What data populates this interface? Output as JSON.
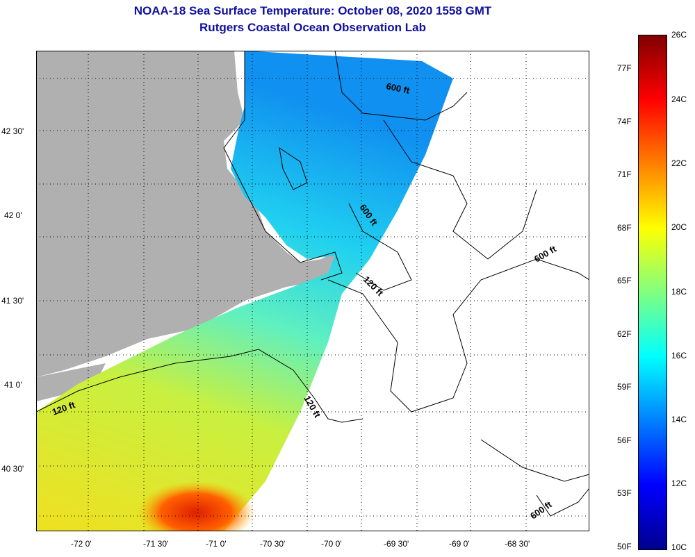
{
  "title": "NOAA-18 Sea Surface Temperature:  October 08, 2020 1558 GMT",
  "subtitle": "Rutgers Coastal Ocean Observation Lab",
  "map": {
    "lon_ticks": [
      "-72 0'",
      "-71 30'",
      "-71 0'",
      "-70 30'",
      "-70 0'",
      "-69 30'",
      "-69 0'",
      "-68 30'"
    ],
    "lat_ticks": [
      "42 30'",
      "42 0'",
      "41 30'",
      "41 0'",
      "40 30'"
    ],
    "contour_labels": [
      {
        "text": "600 ft"
      },
      {
        "text": "600 ft"
      },
      {
        "text": "600 ft"
      },
      {
        "text": "600 ft"
      },
      {
        "text": "120 ft"
      },
      {
        "text": "120 ft"
      },
      {
        "text": "120 ft"
      }
    ],
    "colors": {
      "land": "#b0b0b0",
      "no_data": "#ffffff",
      "coastline": "#000000"
    }
  },
  "colorbar": {
    "celsius_labels": [
      "26C",
      "24C",
      "22C",
      "20C",
      "18C",
      "16C",
      "14C",
      "12C",
      "10C"
    ],
    "fahrenheit_labels": [
      "77F",
      "74F",
      "71F",
      "68F",
      "65F",
      "62F",
      "59F",
      "56F",
      "53F",
      "50F"
    ],
    "colors": [
      "#800000",
      "#ff0000",
      "#ff8000",
      "#ffff00",
      "#80ff80",
      "#00ffff",
      "#0080ff",
      "#0000ff",
      "#00008f"
    ]
  }
}
